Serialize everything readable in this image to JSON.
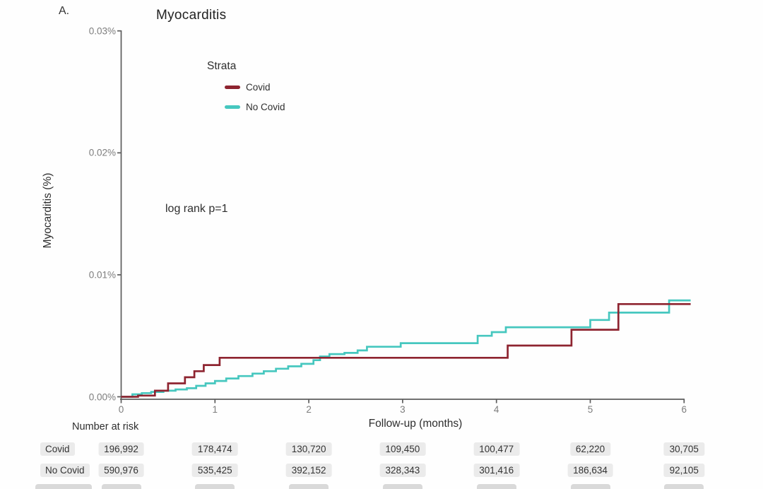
{
  "panel_label": "A.",
  "title": "Myocarditis",
  "annotation": "log rank p=1",
  "y_axis": {
    "label": "Myocarditis (%)",
    "ticks": [
      "0.03%",
      "0.02%",
      "0.01%",
      "0.00%"
    ]
  },
  "x_axis": {
    "label": "Follow-up (months)",
    "ticks": [
      "0",
      "1",
      "2",
      "3",
      "4",
      "5",
      "6"
    ]
  },
  "legend": {
    "title": "Strata",
    "items": [
      {
        "label": "Covid",
        "color": "#8e2430"
      },
      {
        "label": "No Covid",
        "color": "#46c7bf"
      }
    ]
  },
  "risk_table": {
    "title": "Number at risk",
    "rows": [
      {
        "label": "Covid",
        "values": [
          "196,992",
          "178,474",
          "130,720",
          "109,450",
          "100,477",
          "62,220",
          "30,705"
        ]
      },
      {
        "label": "No Covid",
        "values": [
          "590,976",
          "535,425",
          "392,152",
          "328,343",
          "301,416",
          "186,634",
          "92,105"
        ]
      }
    ]
  },
  "chart_data": {
    "type": "line",
    "subtype": "step-cumulative-incidence",
    "title": "Myocarditis",
    "xlabel": "Follow-up (months)",
    "ylabel": "Myocarditis (%)",
    "xlim": [
      0,
      6.07
    ],
    "ylim_percent": [
      0,
      0.03
    ],
    "x_ticks": [
      0,
      1,
      2,
      3,
      4,
      5,
      6
    ],
    "y_ticks_percent": [
      0.0,
      0.01,
      0.02,
      0.03
    ],
    "annotation": "log rank p=1",
    "legend_position": "inside-top-left",
    "grid": false,
    "series": [
      {
        "name": "Covid",
        "color": "#8e2430",
        "points": [
          [
            0,
            0
          ],
          [
            0.18,
            0.0001
          ],
          [
            0.36,
            0.0005
          ],
          [
            0.5,
            0.0011
          ],
          [
            0.68,
            0.0016
          ],
          [
            0.78,
            0.0021
          ],
          [
            0.88,
            0.0026
          ],
          [
            1.05,
            0.0032
          ],
          [
            4.12,
            0.0042
          ],
          [
            4.8,
            0.0055
          ],
          [
            5.3,
            0.0076
          ]
        ]
      },
      {
        "name": "No Covid",
        "color": "#46c7bf",
        "points": [
          [
            0,
            0
          ],
          [
            0.12,
            0.0002
          ],
          [
            0.22,
            0.0003
          ],
          [
            0.32,
            0.0004
          ],
          [
            0.45,
            0.0005
          ],
          [
            0.58,
            0.0006
          ],
          [
            0.7,
            0.0007
          ],
          [
            0.8,
            0.0009
          ],
          [
            0.9,
            0.0011
          ],
          [
            1.0,
            0.0013
          ],
          [
            1.12,
            0.0015
          ],
          [
            1.25,
            0.0017
          ],
          [
            1.4,
            0.0019
          ],
          [
            1.52,
            0.0021
          ],
          [
            1.65,
            0.0023
          ],
          [
            1.78,
            0.0025
          ],
          [
            1.92,
            0.0027
          ],
          [
            2.05,
            0.003
          ],
          [
            2.12,
            0.0033
          ],
          [
            2.22,
            0.0035
          ],
          [
            2.38,
            0.0036
          ],
          [
            2.52,
            0.0038
          ],
          [
            2.62,
            0.0041
          ],
          [
            2.98,
            0.0044
          ],
          [
            3.8,
            0.005
          ],
          [
            3.95,
            0.0053
          ],
          [
            4.1,
            0.0057
          ],
          [
            5.0,
            0.0063
          ],
          [
            5.2,
            0.0069
          ],
          [
            5.84,
            0.0079
          ]
        ]
      }
    ]
  }
}
